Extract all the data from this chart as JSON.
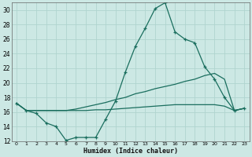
{
  "title": "",
  "xlabel": "Humidex (Indice chaleur)",
  "ylabel": "",
  "background_color": "#cce8e4",
  "grid_color": "#b0d4cf",
  "line_color": "#1a6e5e",
  "xlim": [
    -0.5,
    23.5
  ],
  "ylim": [
    12,
    31
  ],
  "yticks": [
    12,
    14,
    16,
    18,
    20,
    22,
    24,
    26,
    28,
    30
  ],
  "xticks": [
    0,
    1,
    2,
    3,
    4,
    5,
    6,
    7,
    8,
    9,
    10,
    11,
    12,
    13,
    14,
    15,
    16,
    17,
    18,
    19,
    20,
    21,
    22,
    23
  ],
  "xtick_labels": [
    "0",
    "1",
    "2",
    "3",
    "4",
    "5",
    "6",
    "7",
    "8",
    "9",
    "10",
    "11",
    "12",
    "13",
    "14",
    "15",
    "16",
    "17",
    "18",
    "19",
    "20",
    "21",
    "22",
    "23"
  ],
  "line1_x": [
    0,
    1,
    2,
    3,
    4,
    5,
    6,
    7,
    8,
    9,
    10,
    11,
    12,
    13,
    14,
    15,
    16,
    17,
    18,
    19,
    20,
    21,
    22,
    23
  ],
  "line1_y": [
    17.2,
    16.2,
    15.8,
    14.5,
    14.0,
    12.1,
    12.5,
    12.5,
    12.5,
    15.0,
    17.5,
    21.5,
    25.0,
    27.5,
    30.2,
    31.0,
    27.0,
    26.0,
    25.5,
    22.2,
    20.5,
    18.0,
    16.2,
    16.5
  ],
  "line2_x": [
    0,
    1,
    2,
    3,
    4,
    5,
    6,
    7,
    8,
    9,
    10,
    11,
    12,
    13,
    14,
    15,
    16,
    17,
    18,
    19,
    20,
    21,
    22,
    23
  ],
  "line2_y": [
    17.2,
    16.2,
    16.2,
    16.2,
    16.2,
    16.2,
    16.4,
    16.7,
    17.0,
    17.3,
    17.7,
    18.0,
    18.5,
    18.8,
    19.2,
    19.5,
    19.8,
    20.2,
    20.5,
    21.0,
    21.3,
    20.5,
    16.2,
    16.5
  ],
  "line3_x": [
    0,
    1,
    2,
    3,
    4,
    5,
    6,
    7,
    8,
    9,
    10,
    11,
    12,
    13,
    14,
    15,
    16,
    17,
    18,
    19,
    20,
    21,
    22,
    23
  ],
  "line3_y": [
    17.2,
    16.2,
    16.2,
    16.2,
    16.2,
    16.2,
    16.2,
    16.2,
    16.3,
    16.3,
    16.4,
    16.5,
    16.6,
    16.7,
    16.8,
    16.9,
    17.0,
    17.0,
    17.0,
    17.0,
    17.0,
    16.8,
    16.2,
    16.5
  ]
}
